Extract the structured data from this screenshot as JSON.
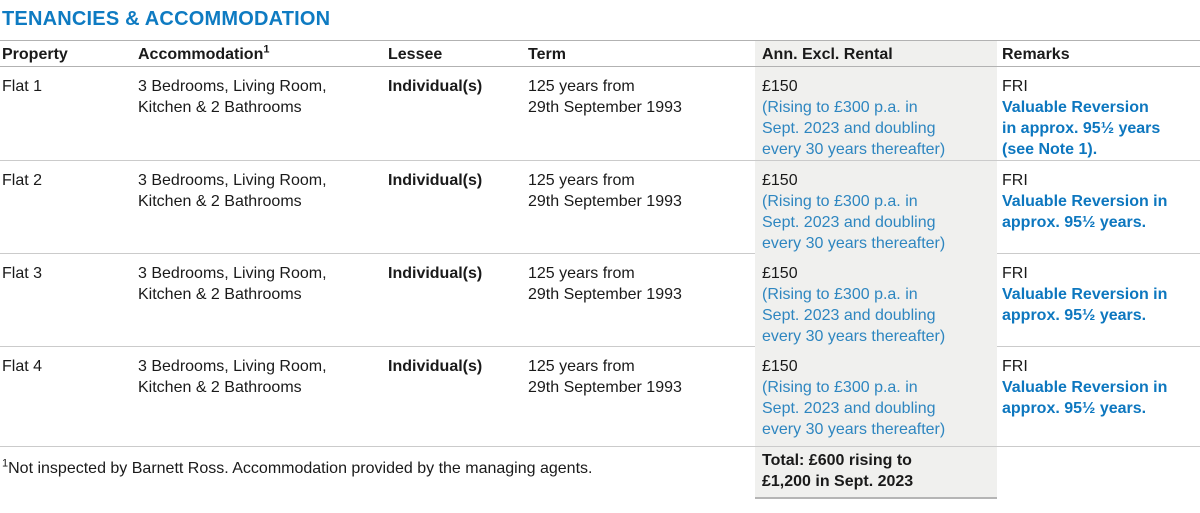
{
  "page_title": "TENANCIES & ACCOMMODATION",
  "table": {
    "headers": {
      "property": "Property",
      "accommodation": "Accommodation",
      "accommodation_footnote_marker": "1",
      "lessee": "Lessee",
      "term": "Term",
      "rental": "Ann. Excl. Rental",
      "remarks": "Remarks"
    },
    "rows": [
      {
        "property": "Flat 1",
        "accommodation_lines": [
          "3 Bedrooms, Living Room,",
          "Kitchen & 2 Bathrooms"
        ],
        "lessee": "Individual(s)",
        "term_lines": [
          "125 years from",
          "29th September 1993"
        ],
        "rent": "£150",
        "rent_note_lines": [
          "(Rising to £300 p.a. in",
          "Sept. 2023 and doubling",
          "every 30 years thereafter)"
        ],
        "remarks_tenure": "FRI",
        "remarks_note_lines": [
          "Valuable Reversion",
          "in approx. 95½ years",
          "(see Note 1)."
        ]
      },
      {
        "property": "Flat 2",
        "accommodation_lines": [
          "3 Bedrooms, Living Room,",
          "Kitchen & 2 Bathrooms"
        ],
        "lessee": "Individual(s)",
        "term_lines": [
          "125 years from",
          "29th September 1993"
        ],
        "rent": "£150",
        "rent_note_lines": [
          "(Rising to £300 p.a. in",
          "Sept. 2023 and doubling",
          "every 30 years thereafter)"
        ],
        "remarks_tenure": "FRI",
        "remarks_note_lines": [
          "Valuable Reversion in",
          "approx. 95½ years."
        ]
      },
      {
        "property": "Flat 3",
        "accommodation_lines": [
          "3 Bedrooms, Living Room,",
          "Kitchen & 2 Bathrooms"
        ],
        "lessee": "Individual(s)",
        "term_lines": [
          "125 years from",
          "29th September 1993"
        ],
        "rent": "£150",
        "rent_note_lines": [
          "(Rising to £300 p.a. in",
          "Sept. 2023 and doubling",
          "every 30 years thereafter)"
        ],
        "remarks_tenure": "FRI",
        "remarks_note_lines": [
          "Valuable Reversion in",
          "approx. 95½ years."
        ]
      },
      {
        "property": "Flat 4",
        "accommodation_lines": [
          "3 Bedrooms, Living Room,",
          "Kitchen & 2 Bathrooms"
        ],
        "lessee": "Individual(s)",
        "term_lines": [
          "125 years from",
          "29th September 1993"
        ],
        "rent": "£150",
        "rent_note_lines": [
          "(Rising to £300 p.a. in",
          "Sept. 2023 and doubling",
          "every 30 years thereafter)"
        ],
        "remarks_tenure": "FRI",
        "remarks_note_lines": [
          "Valuable Reversion in",
          "approx. 95½ years."
        ]
      }
    ],
    "footer": {
      "footnote_marker": "1",
      "footnote_text": "Not inspected by Barnett Ross. Accommodation provided by the managing agents.",
      "total_lines": [
        "Total: £600 rising to",
        "£1,200 in Sept. 2023"
      ]
    }
  },
  "colors": {
    "title_blue": "#0e7bc2",
    "note_blue": "#2e86c0",
    "remark_blue": "#0d77bf",
    "shaded_column_bg": "#f0f0ee"
  }
}
